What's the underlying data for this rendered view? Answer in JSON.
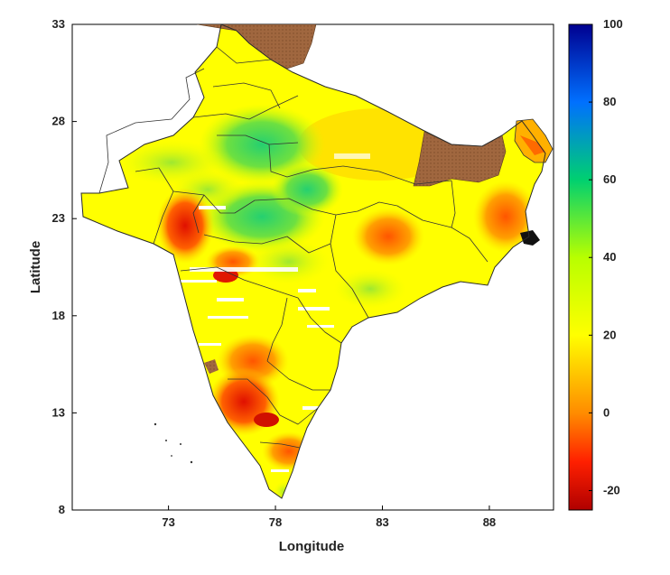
{
  "map": {
    "xlabel": "Longitude",
    "ylabel": "Latitude",
    "xlim": [
      68.5,
      91
    ],
    "ylim": [
      8,
      33
    ],
    "x_ticks": [
      73,
      78,
      83,
      88
    ],
    "y_ticks": [
      8,
      13,
      18,
      23,
      28,
      33
    ],
    "colorbar": {
      "min": -25,
      "max": 100,
      "ticks": [
        -20,
        0,
        20,
        40,
        60,
        80,
        100
      ],
      "colors": [
        "#b00000",
        "#ff2000",
        "#ff8c00",
        "#ffff00",
        "#b8ff00",
        "#00d070",
        "#0070ff",
        "#000090"
      ],
      "stops": [
        0,
        0.1,
        0.2,
        0.36,
        0.52,
        0.68,
        0.84,
        1
      ]
    },
    "nodata_color": "#a0673f",
    "background_color": "#ffffff"
  }
}
